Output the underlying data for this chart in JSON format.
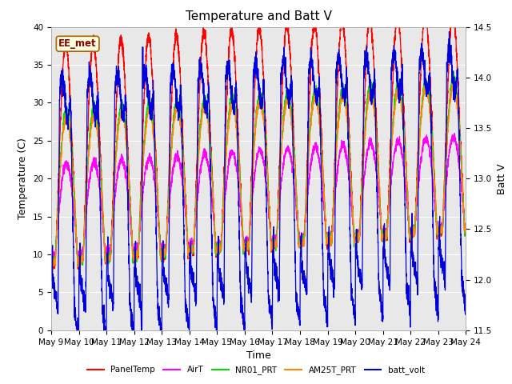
{
  "title": "Temperature and Batt V",
  "ylabel_left": "Temperature (C)",
  "ylabel_right": "Batt V",
  "xlabel": "Time",
  "annotation": "EE_met",
  "ylim_left": [
    0,
    40
  ],
  "ylim_right": [
    11.5,
    14.5
  ],
  "xtick_labels": [
    "May 9",
    "May 10",
    "May 11",
    "May 12",
    "May 13",
    "May 14",
    "May 15",
    "May 16",
    "May 17",
    "May 18",
    "May 19",
    "May 20",
    "May 21",
    "May 22",
    "May 23",
    "May 24"
  ],
  "legend_entries": [
    {
      "label": "PanelTemp",
      "color": "#ff0000"
    },
    {
      "label": "AirT",
      "color": "#ff00ff"
    },
    {
      "label": "NR01_PRT",
      "color": "#00dd00"
    },
    {
      "label": "AM25T_PRT",
      "color": "#ff8800"
    },
    {
      "label": "batt_volt",
      "color": "#0000dd"
    }
  ],
  "plot_bg_color": "#e8e8e8",
  "title_fontsize": 11,
  "axis_label_fontsize": 9,
  "tick_fontsize": 7.5,
  "linewidth": 0.9,
  "batt_ylim": [
    11.5,
    14.5
  ],
  "temp_ylim": [
    0,
    40
  ]
}
